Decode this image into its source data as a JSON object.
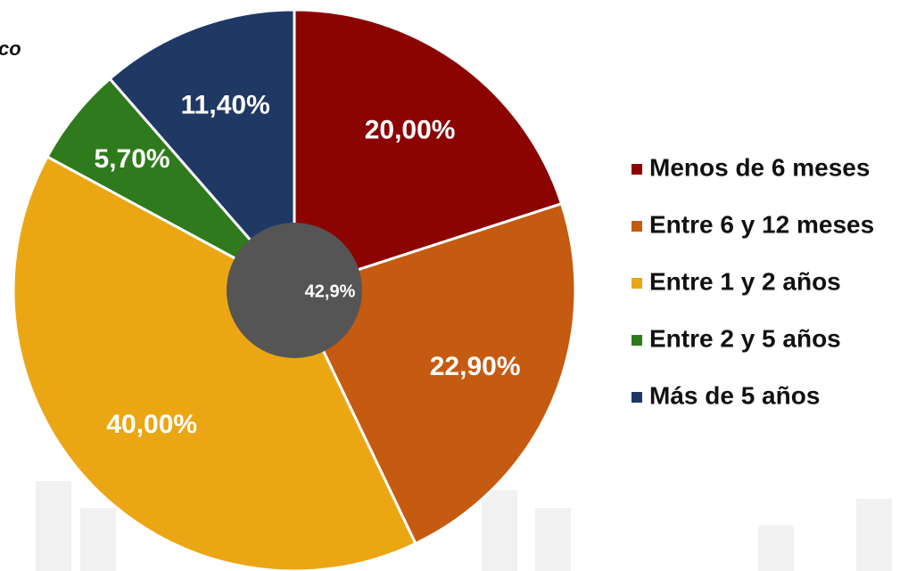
{
  "chart_data": {
    "type": "pie",
    "title": "co",
    "categories": [
      "Menos de 6 meses",
      "Entre 6 y 12 meses",
      "Entre 1 y 2 años",
      "Entre 2 y 5 años",
      "Más de 5 años"
    ],
    "values": [
      20,
      22.9,
      40,
      5.7,
      11.4
    ],
    "value_labels": [
      "20,00%",
      "22,90%",
      "40,00%",
      "5,70%",
      "11,40%"
    ],
    "colors": [
      "#8b0402",
      "#c55a11",
      "#eba614",
      "#2f7a1d",
      "#1f3864"
    ],
    "center_label": "42,9%",
    "legend": "right"
  }
}
